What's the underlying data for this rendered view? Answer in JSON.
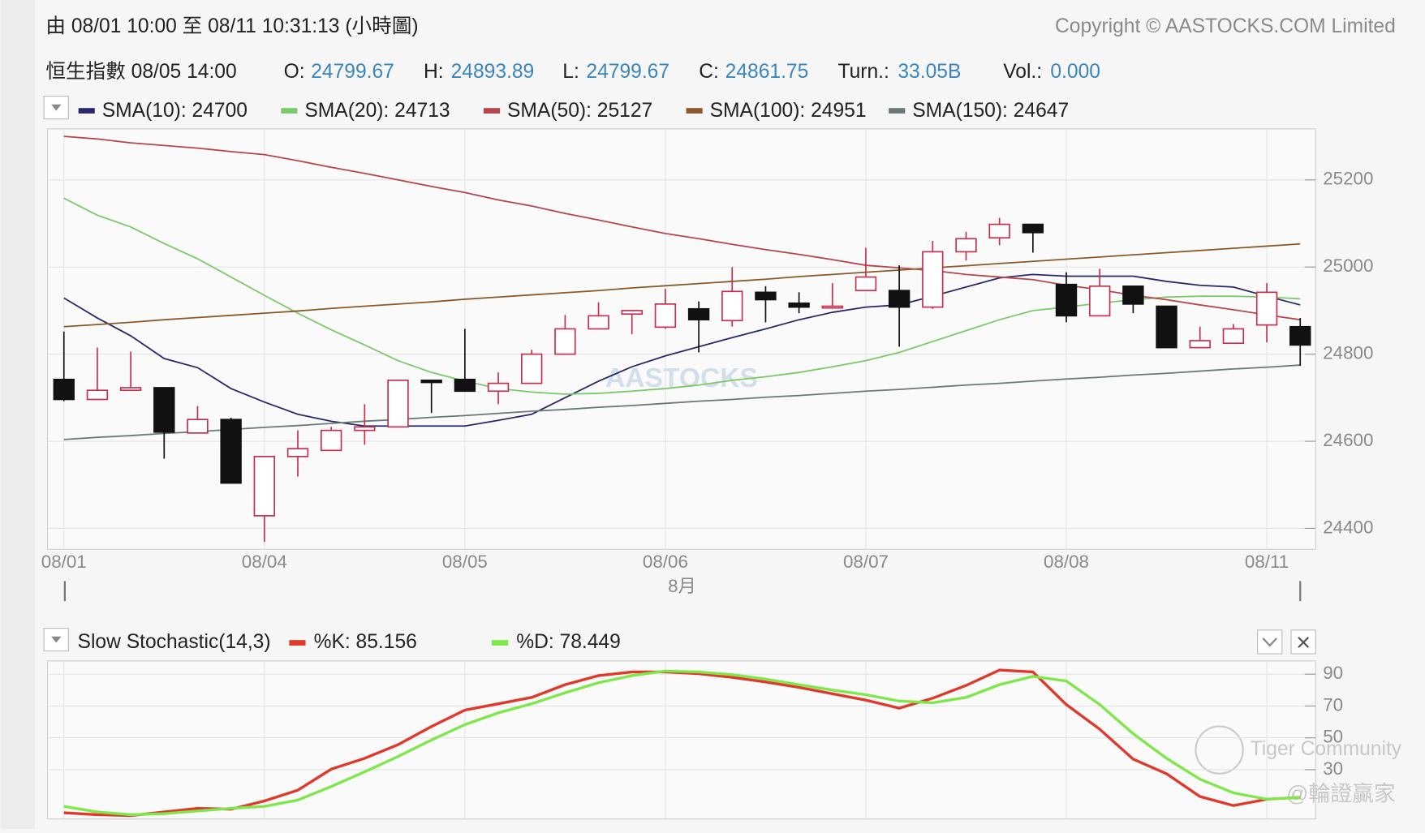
{
  "header": {
    "range": "由  08/01 10:00 至  08/11 10:31:13 (小時圖)",
    "copyright": "Copyright © AASTOCKS.COM Limited",
    "name_time": "恒生指數 08/05 14:00",
    "fields": [
      {
        "label": "O:",
        "value": "24799.67"
      },
      {
        "label": "H:",
        "value": "24893.89"
      },
      {
        "label": "L:",
        "value": "24799.67"
      },
      {
        "label": "C:",
        "value": "24861.75"
      },
      {
        "label": "Turn.:",
        "value": "33.05B"
      },
      {
        "label": "Vol.:",
        "value": "0.000"
      }
    ]
  },
  "watermarks": [
    "AASTOCKS",
    "Tiger Community",
    "@輪證贏家"
  ],
  "chart_data": [
    {
      "type": "candlestick",
      "categories": [
        "08/01",
        null,
        null,
        null,
        null,
        null,
        "08/04",
        null,
        null,
        null,
        null,
        null,
        "08/05",
        null,
        null,
        null,
        null,
        null,
        "08/06",
        null,
        null,
        null,
        null,
        null,
        "08/07",
        null,
        null,
        null,
        null,
        null,
        "08/08",
        null,
        null,
        null,
        null,
        null,
        "08/11",
        null
      ],
      "x_sublabel": "8月",
      "open": [
        24742,
        24696,
        24717,
        24723,
        24619,
        24650,
        24429,
        24565,
        24579,
        24625,
        24633,
        24740,
        24742,
        24715,
        24733,
        24800,
        24858,
        24892,
        24862,
        24904,
        24877,
        24942,
        24917,
        24906,
        24946,
        24946,
        24908,
        25035,
        25067,
        25098,
        24960,
        24888,
        24956,
        24910,
        24815,
        24825,
        24867,
        24863
      ],
      "high": [
        24852,
        24815,
        24806,
        24723,
        24681,
        24654,
        24565,
        24625,
        24633,
        24685,
        24742,
        24740,
        24858,
        24758,
        24810,
        24890,
        24919,
        24900,
        24950,
        24921,
        25000,
        24956,
        24942,
        24963,
        25044,
        25004,
        25060,
        25081,
        25113,
        25098,
        24988,
        24996,
        24956,
        24910,
        24863,
        24869,
        24963,
        24883
      ],
      "low": [
        24692,
        24696,
        24717,
        24560,
        24619,
        24504,
        24369,
        24519,
        24579,
        24592,
        24633,
        24665,
        24715,
        24685,
        24733,
        24800,
        24858,
        24846,
        24858,
        24804,
        24863,
        24873,
        24894,
        24906,
        24946,
        24817,
        24904,
        25015,
        25050,
        25033,
        24873,
        24888,
        24894,
        24815,
        24815,
        24825,
        24827,
        24773
      ],
      "close": [
        24696,
        24717,
        24723,
        24621,
        24650,
        24504,
        24565,
        24583,
        24625,
        24633,
        24740,
        24735,
        24715,
        24733,
        24800,
        24858,
        24888,
        24900,
        24915,
        24879,
        24944,
        24925,
        24908,
        24910,
        24977,
        24908,
        25035,
        25065,
        25098,
        25079,
        24888,
        24956,
        24915,
        24815,
        24831,
        24858,
        24942,
        24821
      ],
      "up_color": "#c4304e",
      "down_color": "#111111",
      "series": [
        {
          "name": "SMA(10): 24700",
          "color": "#28296b",
          "values": [
            24929,
            24883,
            24842,
            24790,
            24769,
            24721,
            24690,
            24662,
            24646,
            24635,
            24635,
            24635,
            24635,
            24648,
            24662,
            24700,
            24738,
            24771,
            24796,
            24817,
            24838,
            24858,
            24879,
            24896,
            24908,
            24913,
            24933,
            24954,
            24975,
            24983,
            24979,
            24979,
            24979,
            24967,
            24958,
            24954,
            24933,
            24913
          ]
        },
        {
          "name": "SMA(20): 24713",
          "color": "#7cc96a",
          "values": [
            25158,
            25119,
            25092,
            25054,
            25019,
            24977,
            24935,
            24894,
            24856,
            24821,
            24785,
            24758,
            24738,
            24721,
            24713,
            24708,
            24710,
            24715,
            24721,
            24729,
            24740,
            24748,
            24758,
            24771,
            24785,
            24804,
            24829,
            24854,
            24879,
            24900,
            24908,
            24917,
            24925,
            24931,
            24933,
            24933,
            24931,
            24927
          ]
        },
        {
          "name": "SMA(50): 25127",
          "color": "#b5474a",
          "values": [
            25300,
            25294,
            25285,
            25279,
            25273,
            25265,
            25258,
            25244,
            25229,
            25215,
            25200,
            25185,
            25171,
            25154,
            25140,
            25123,
            25108,
            25092,
            25077,
            25065,
            25052,
            25040,
            25029,
            25017,
            25004,
            24998,
            24992,
            24983,
            24977,
            24971,
            24958,
            24948,
            24935,
            24925,
            24913,
            24902,
            24890,
            24879
          ]
        },
        {
          "name": "SMA(100): 24951",
          "color": "#8b5a2b",
          "values": [
            24863,
            24868,
            24873,
            24879,
            24884,
            24889,
            24894,
            24899,
            24905,
            24910,
            24915,
            24920,
            24926,
            24931,
            24936,
            24941,
            24946,
            24952,
            24957,
            24962,
            24967,
            24972,
            24978,
            24983,
            24988,
            24993,
            24998,
            25003,
            25008,
            25013,
            25018,
            25023,
            25028,
            25033,
            25038,
            25043,
            25048,
            25053
          ]
        },
        {
          "name": "SMA(150): 24647",
          "color": "#6a7a78",
          "values": [
            24604,
            24609,
            24613,
            24618,
            24622,
            24627,
            24632,
            24636,
            24641,
            24646,
            24650,
            24655,
            24659,
            24664,
            24669,
            24673,
            24678,
            24682,
            24687,
            24692,
            24696,
            24701,
            24705,
            24710,
            24715,
            24719,
            24724,
            24729,
            24733,
            24738,
            24743,
            24747,
            24752,
            24756,
            24761,
            24766,
            24770,
            24775
          ]
        }
      ],
      "ylim": [
        24352,
        25317
      ],
      "yticks": [
        24400,
        24600,
        24800,
        25000,
        25200
      ],
      "grid": true
    },
    {
      "type": "line",
      "title": "Slow Stochastic(14,3)",
      "series": [
        {
          "name": "%K: 85.156",
          "color": "#e0392b",
          "values": [
            2.9,
            1.7,
            1.1,
            3.4,
            5.7,
            5.1,
            10.3,
            17.1,
            30.3,
            37.1,
            45.7,
            57.1,
            67.4,
            71.4,
            75.4,
            83.4,
            89.1,
            91.4,
            91.4,
            90.3,
            88,
            85.1,
            81.7,
            77.7,
            73.7,
            68.6,
            74.9,
            82.9,
            92.6,
            91.4,
            70.9,
            55.4,
            36.6,
            27.4,
            13.1,
            7.4,
            11.4,
            12.6
          ]
        },
        {
          "name": "%D: 78.449",
          "color": "#7ee84a",
          "values": [
            6.9,
            3.4,
            1.7,
            2.3,
            4,
            5.7,
            6.9,
            10.9,
            19.4,
            28.6,
            38.3,
            48.6,
            58.3,
            65.7,
            71.4,
            78.3,
            84.6,
            89.1,
            92,
            91.4,
            89.7,
            86.9,
            83.4,
            80,
            77.1,
            73.1,
            72,
            75.4,
            83.4,
            88.6,
            85.7,
            70.9,
            52.6,
            37.1,
            24,
            15.4,
            11.4,
            12.6
          ]
        }
      ],
      "ylim": [
        -1,
        98.3
      ],
      "yticks": [
        30,
        50,
        70,
        90
      ],
      "grid": true
    }
  ]
}
